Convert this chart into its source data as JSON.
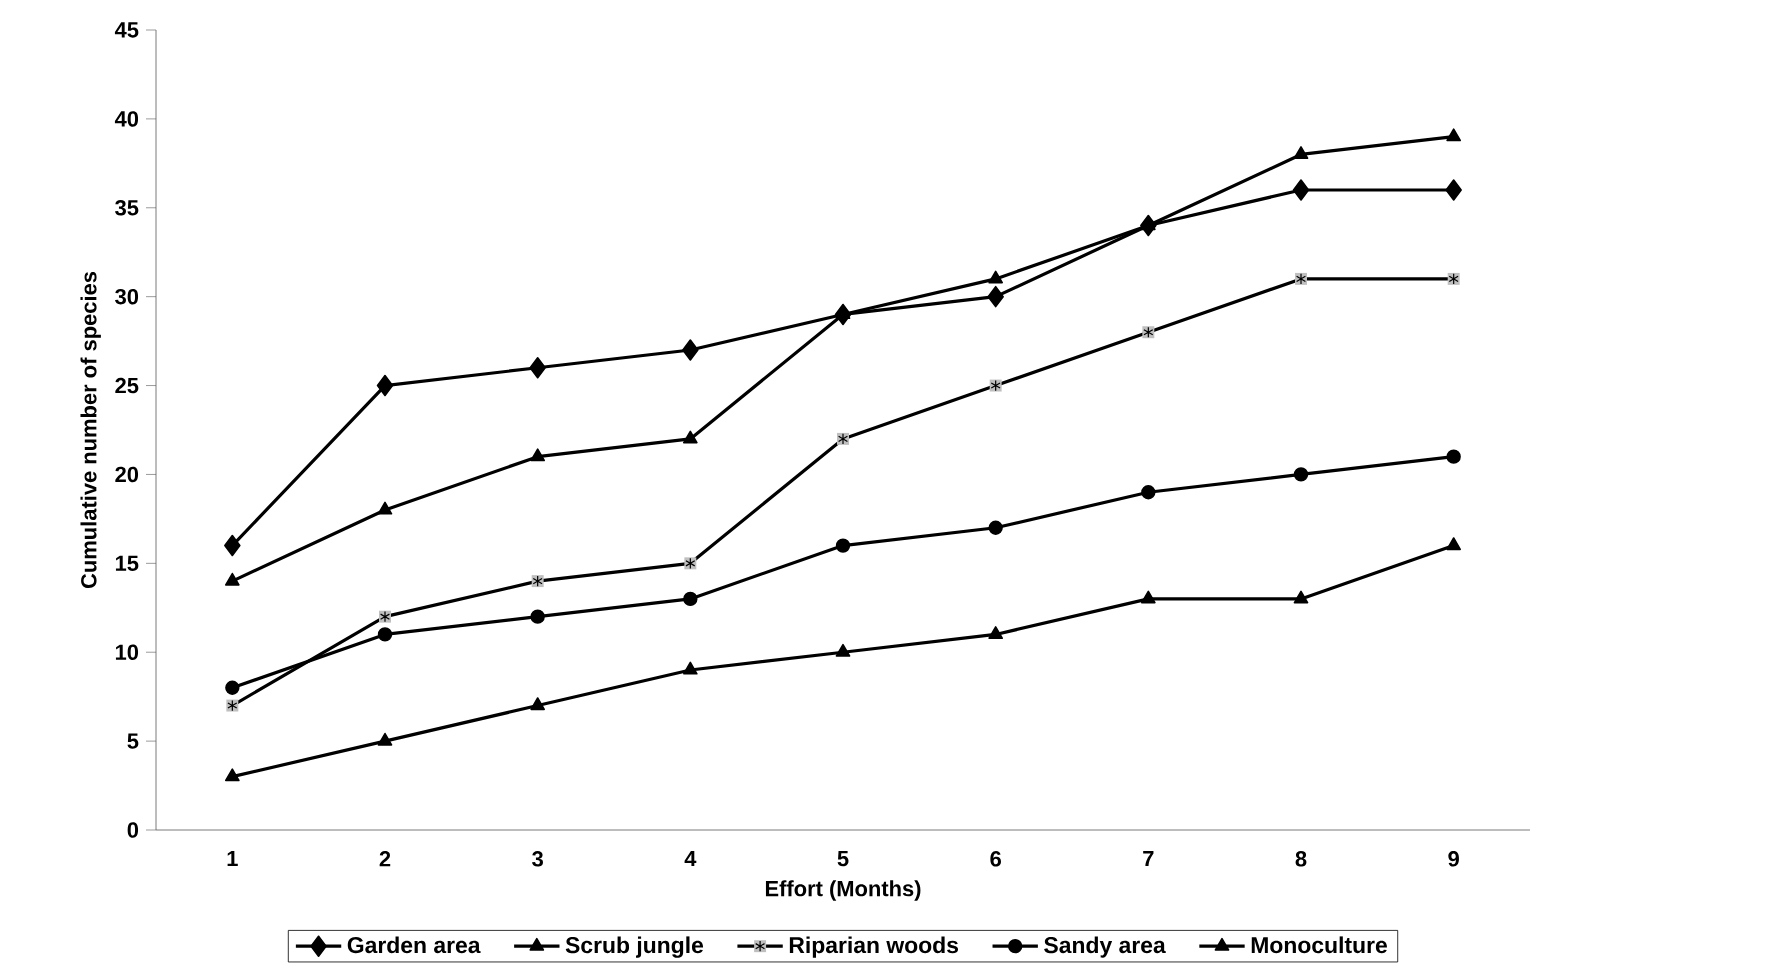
{
  "chart_data": {
    "type": "line",
    "xlabel": "Effort (Months)",
    "ylabel": "Cumulative number of species",
    "categories": [
      "1",
      "2",
      "3",
      "4",
      "5",
      "6",
      "7",
      "8",
      "9"
    ],
    "ylim": [
      0,
      45
    ],
    "yticks": [
      0,
      5,
      10,
      15,
      20,
      25,
      30,
      35,
      40,
      45
    ],
    "legend": "bottom",
    "line_style": "solid",
    "series": [
      {
        "name": "Garden area",
        "color": "#000000",
        "marker": "diamond",
        "values": [
          16,
          25,
          26,
          27,
          29,
          30,
          34,
          36,
          36
        ]
      },
      {
        "name": "Scrub jungle",
        "color": "#000000",
        "marker": "triangle",
        "values": [
          14,
          18,
          21,
          22,
          29,
          31,
          34,
          38,
          39
        ]
      },
      {
        "name": "Riparian woods",
        "color": "#000000",
        "marker": "cross",
        "values": [
          7,
          12,
          14,
          15,
          22,
          25,
          28,
          31,
          31
        ]
      },
      {
        "name": "Sandy area",
        "color": "#000000",
        "marker": "circle",
        "values": [
          8,
          11,
          12,
          13,
          16,
          17,
          19,
          20,
          21
        ]
      },
      {
        "name": "Monoculture",
        "color": "#000000",
        "marker": "triangle",
        "values": [
          3,
          5,
          7,
          9,
          10,
          11,
          13,
          13,
          16
        ]
      }
    ]
  }
}
